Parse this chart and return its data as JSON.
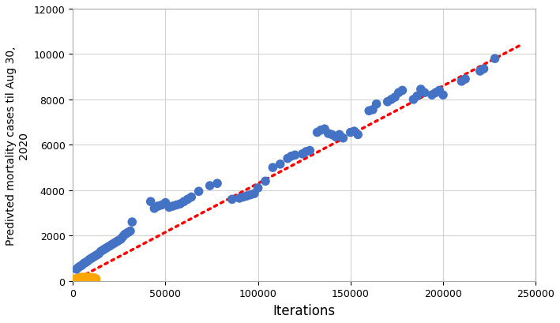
{
  "title": "",
  "xlabel": "Iterations",
  "ylabel": "Predivted mortality cases til Aug 30,\n2020",
  "xlim": [
    0,
    250000
  ],
  "ylim": [
    0,
    12000
  ],
  "xticks": [
    0,
    50000,
    100000,
    150000,
    200000,
    250000
  ],
  "yticks": [
    0,
    2000,
    4000,
    6000,
    8000,
    10000,
    12000
  ],
  "scatter_color_blue": "#4472C4",
  "scatter_color_orange": "#FFA500",
  "trendline_color": "#FF0000",
  "background_color": "#FFFFFF",
  "grid_color": "#D3D3D3",
  "blue_x": [
    2000,
    3000,
    4000,
    5000,
    6000,
    7000,
    8000,
    9000,
    10000,
    11000,
    12000,
    13000,
    14000,
    15000,
    16000,
    17000,
    18000,
    19000,
    20000,
    21000,
    22000,
    23000,
    24000,
    25000,
    26000,
    27000,
    28000,
    29000,
    30000,
    31000,
    32000,
    42000,
    44000,
    46000,
    48000,
    50000,
    52000,
    54000,
    56000,
    58000,
    60000,
    62000,
    64000,
    68000,
    74000,
    78000,
    86000,
    90000,
    92000,
    94000,
    96000,
    98000,
    100000,
    104000,
    108000,
    112000,
    116000,
    118000,
    120000,
    124000,
    126000,
    128000,
    132000,
    134000,
    136000,
    138000,
    140000,
    142000,
    144000,
    146000,
    150000,
    152000,
    154000,
    160000,
    162000,
    164000,
    170000,
    172000,
    174000,
    176000,
    178000,
    184000,
    186000,
    188000,
    190000,
    194000,
    196000,
    198000,
    200000,
    210000,
    212000,
    220000,
    222000,
    228000
  ],
  "blue_y": [
    520,
    600,
    650,
    700,
    780,
    820,
    880,
    950,
    1000,
    1050,
    1100,
    1150,
    1200,
    1300,
    1350,
    1400,
    1450,
    1500,
    1550,
    1600,
    1650,
    1700,
    1750,
    1800,
    1850,
    1950,
    2050,
    2100,
    2150,
    2200,
    2600,
    3500,
    3200,
    3300,
    3350,
    3450,
    3250,
    3300,
    3350,
    3400,
    3500,
    3600,
    3700,
    3950,
    4200,
    4300,
    3600,
    3650,
    3700,
    3750,
    3800,
    3850,
    4100,
    4400,
    5000,
    5150,
    5400,
    5500,
    5550,
    5600,
    5700,
    5750,
    6550,
    6650,
    6700,
    6500,
    6450,
    6350,
    6450,
    6300,
    6550,
    6600,
    6450,
    7500,
    7550,
    7800,
    7900,
    8000,
    8100,
    8300,
    8400,
    8000,
    8150,
    8450,
    8300,
    8200,
    8300,
    8400,
    8200,
    8800,
    8900,
    9250,
    9350,
    9800
  ],
  "orange_x": [
    1000,
    1500,
    2000,
    2500,
    3000,
    3500,
    4000,
    4500,
    5000,
    5500,
    6000,
    6500,
    7000,
    7500,
    8000,
    8500,
    9000,
    9500,
    10000,
    10500,
    11000,
    11500,
    12000
  ],
  "orange_y": [
    30,
    50,
    60,
    70,
    80,
    90,
    100,
    110,
    120,
    80,
    100,
    110,
    120,
    130,
    100,
    90,
    110,
    100,
    80,
    90,
    100,
    70,
    80
  ],
  "trend_x": [
    0,
    242000
  ],
  "trend_y": [
    0,
    10400
  ]
}
